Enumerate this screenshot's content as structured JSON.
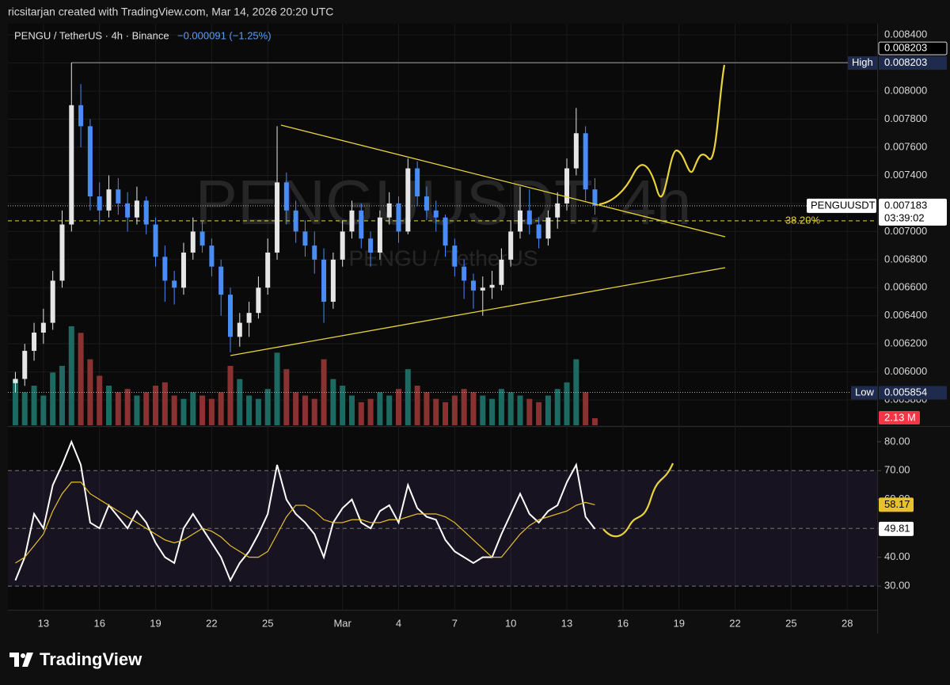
{
  "header": {
    "attribution": "ricsitarjan created with TradingView.com, Mar 14, 2026 20:20 UTC",
    "symbol": "PENGU / TetherUS · 4h · Binance",
    "change": "−0.000091 (−1.25%)",
    "watermark": "PENGUUSDT, 4h",
    "watermark_sub": "PENGU / TetherUS"
  },
  "footer": {
    "brand": "TradingView"
  },
  "chart_data": [
    {
      "type": "candlestick",
      "xlim": [
        -1.9,
        44.6
      ],
      "xticks": [
        {
          "value": 0,
          "label": "13"
        },
        {
          "value": 3,
          "label": "16"
        },
        {
          "value": 6,
          "label": "19"
        },
        {
          "value": 9,
          "label": "22"
        },
        {
          "value": 12,
          "label": "25"
        },
        {
          "value": 16,
          "label": "Mar"
        },
        {
          "value": 19,
          "label": "4"
        },
        {
          "value": 22,
          "label": "7"
        },
        {
          "value": 25,
          "label": "10"
        },
        {
          "value": 28,
          "label": "13"
        },
        {
          "value": 31,
          "label": "16"
        },
        {
          "value": 34,
          "label": "19"
        },
        {
          "value": 37,
          "label": "22"
        },
        {
          "value": 40,
          "label": "25"
        },
        {
          "value": 43,
          "label": "28"
        }
      ],
      "ylim": [
        0.00562,
        0.00848
      ],
      "yticks": [
        {
          "value": 0.0058,
          "label": "0.005800"
        },
        {
          "value": 0.006,
          "label": "0.006000"
        },
        {
          "value": 0.0062,
          "label": "0.006200"
        },
        {
          "value": 0.0064,
          "label": "0.006400"
        },
        {
          "value": 0.0066,
          "label": "0.006600"
        },
        {
          "value": 0.0068,
          "label": "0.006800"
        },
        {
          "value": 0.007,
          "label": "0.007000"
        },
        {
          "value": 0.0072,
          "label": "0.007200"
        },
        {
          "value": 0.0074,
          "label": "0.007400"
        },
        {
          "value": 0.0076,
          "label": "0.007600"
        },
        {
          "value": 0.0078,
          "label": "0.007800"
        },
        {
          "value": 0.008,
          "label": "0.008000"
        },
        {
          "value": 0.0082,
          "label": "0.008200"
        },
        {
          "value": 0.0084,
          "label": "0.008400"
        }
      ],
      "x": [
        -1.5,
        -1,
        -0.5,
        0,
        0.5,
        1,
        1.5,
        2,
        2.5,
        3,
        3.5,
        4,
        4.5,
        5,
        5.5,
        6,
        6.5,
        7,
        7.5,
        8,
        8.5,
        9,
        9.5,
        10,
        10.5,
        11,
        11.5,
        12,
        12.5,
        13,
        13.5,
        14,
        14.5,
        15,
        15.5,
        16,
        16.5,
        17,
        17.5,
        18,
        18.5,
        19,
        19.5,
        20,
        20.5,
        21,
        21.5,
        22,
        22.5,
        23,
        23.5,
        24,
        24.5,
        25,
        25.5,
        26,
        26.5,
        27,
        27.5,
        28,
        28.5,
        29,
        29.5
      ],
      "candles": [
        [
          0.00592,
          0.006,
          0.005854,
          0.00595
        ],
        [
          0.00595,
          0.0062,
          0.0059,
          0.00615
        ],
        [
          0.00615,
          0.00635,
          0.00608,
          0.00628
        ],
        [
          0.00628,
          0.00645,
          0.0062,
          0.00635
        ],
        [
          0.00635,
          0.00672,
          0.0063,
          0.00665
        ],
        [
          0.00665,
          0.00715,
          0.0066,
          0.00705
        ],
        [
          0.00705,
          0.008203,
          0.007,
          0.0079
        ],
        [
          0.0079,
          0.00805,
          0.0076,
          0.00775
        ],
        [
          0.00775,
          0.0078,
          0.00715,
          0.00725
        ],
        [
          0.00725,
          0.00735,
          0.00705,
          0.00715
        ],
        [
          0.00715,
          0.0074,
          0.0071,
          0.0073
        ],
        [
          0.0073,
          0.00738,
          0.00712,
          0.0072
        ],
        [
          0.0072,
          0.00728,
          0.007,
          0.0071
        ],
        [
          0.0071,
          0.00732,
          0.00705,
          0.00722
        ],
        [
          0.00722,
          0.00725,
          0.00698,
          0.00705
        ],
        [
          0.00705,
          0.0071,
          0.00675,
          0.00682
        ],
        [
          0.00682,
          0.0069,
          0.0065,
          0.00665
        ],
        [
          0.00665,
          0.00672,
          0.00648,
          0.0066
        ],
        [
          0.0066,
          0.00692,
          0.00655,
          0.00685
        ],
        [
          0.00685,
          0.0071,
          0.0068,
          0.007
        ],
        [
          0.007,
          0.00708,
          0.00685,
          0.0069
        ],
        [
          0.0069,
          0.00695,
          0.00668,
          0.00675
        ],
        [
          0.00675,
          0.0068,
          0.0064,
          0.00655
        ],
        [
          0.00655,
          0.0066,
          0.00614,
          0.00625
        ],
        [
          0.00625,
          0.00642,
          0.00618,
          0.00635
        ],
        [
          0.00635,
          0.0065,
          0.00625,
          0.00642
        ],
        [
          0.00642,
          0.00668,
          0.00638,
          0.0066
        ],
        [
          0.0066,
          0.00695,
          0.00655,
          0.00685
        ],
        [
          0.00685,
          0.00775,
          0.0068,
          0.00735
        ],
        [
          0.00735,
          0.00742,
          0.00705,
          0.00715
        ],
        [
          0.00715,
          0.00722,
          0.00692,
          0.007
        ],
        [
          0.007,
          0.00708,
          0.00682,
          0.0069
        ],
        [
          0.0069,
          0.007,
          0.0067,
          0.0068
        ],
        [
          0.0068,
          0.00688,
          0.00635,
          0.0065
        ],
        [
          0.0065,
          0.00685,
          0.00645,
          0.0068
        ],
        [
          0.0068,
          0.00708,
          0.00675,
          0.007
        ],
        [
          0.007,
          0.00722,
          0.00695,
          0.00715
        ],
        [
          0.00715,
          0.0072,
          0.00688,
          0.00695
        ],
        [
          0.00695,
          0.007,
          0.00675,
          0.00685
        ],
        [
          0.00685,
          0.00715,
          0.0068,
          0.0071
        ],
        [
          0.0071,
          0.00728,
          0.00705,
          0.0072
        ],
        [
          0.0072,
          0.00725,
          0.00692,
          0.007
        ],
        [
          0.007,
          0.00752,
          0.00698,
          0.00745
        ],
        [
          0.00745,
          0.0075,
          0.00718,
          0.00725
        ],
        [
          0.00725,
          0.00732,
          0.00708,
          0.00715
        ],
        [
          0.00715,
          0.00722,
          0.007,
          0.0071
        ],
        [
          0.0071,
          0.00712,
          0.00682,
          0.0069
        ],
        [
          0.0069,
          0.00695,
          0.00668,
          0.00675
        ],
        [
          0.00675,
          0.0068,
          0.00652,
          0.00665
        ],
        [
          0.00665,
          0.0067,
          0.00645,
          0.00658
        ],
        [
          0.00658,
          0.00668,
          0.0064,
          0.0066
        ],
        [
          0.0066,
          0.00672,
          0.00652,
          0.00662
        ],
        [
          0.00662,
          0.00688,
          0.00658,
          0.0068
        ],
        [
          0.0068,
          0.00708,
          0.00675,
          0.007
        ],
        [
          0.007,
          0.00732,
          0.00695,
          0.00715
        ],
        [
          0.00715,
          0.0073,
          0.00698,
          0.00705
        ],
        [
          0.00705,
          0.0071,
          0.00688,
          0.00695
        ],
        [
          0.00695,
          0.00715,
          0.0069,
          0.0071
        ],
        [
          0.0071,
          0.00728,
          0.00702,
          0.0072
        ],
        [
          0.0072,
          0.00752,
          0.00715,
          0.00745
        ],
        [
          0.00745,
          0.00788,
          0.0074,
          0.0077
        ],
        [
          0.0077,
          0.00775,
          0.00722,
          0.0073
        ],
        [
          0.0073,
          0.00738,
          0.00712,
          0.007183
        ]
      ],
      "volumes": [
        14,
        10,
        12,
        9,
        16,
        18,
        30,
        28,
        20,
        15,
        12,
        10,
        11,
        9,
        10,
        12,
        13,
        9,
        8,
        10,
        9,
        8,
        10,
        18,
        14,
        9,
        8,
        11,
        22,
        17,
        10,
        9,
        8,
        20,
        14,
        12,
        9,
        7,
        8,
        10,
        9,
        11,
        17,
        12,
        10,
        8,
        7,
        9,
        11,
        10,
        9,
        8,
        11,
        10,
        9,
        8,
        7,
        9,
        11,
        13,
        20,
        10,
        2.13
      ],
      "volume_last_label": "2.13 M",
      "up_color": "#e6e6e6",
      "down_color": "#4a8cf5",
      "volume_up_color": "#1c6a62",
      "volume_down_color": "#8a3232",
      "high_label": "High",
      "low_label": "Low",
      "symbol_label": "PENGUUSDT",
      "countdown": "03:39:02",
      "fib_level": {
        "value": 0.007076,
        "label": "38.20%"
      }
    },
    {
      "type": "line",
      "ylim": [
        21.8,
        84.9
      ],
      "yticks": [
        {
          "value": 30,
          "label": "30.00"
        },
        {
          "value": 40,
          "label": "40.00"
        },
        {
          "value": 50,
          "label": "50.00"
        },
        {
          "value": 60,
          "label": "60.00"
        },
        {
          "value": 70,
          "label": "70.00"
        },
        {
          "value": 80,
          "label": "80.00"
        }
      ],
      "band": [
        30,
        70
      ],
      "midline": 50,
      "series": [
        {
          "color": "#ffffff",
          "values": [
            32,
            40,
            55,
            50,
            65,
            72,
            80,
            72,
            52,
            50,
            58,
            54,
            50,
            56,
            52,
            45,
            40,
            38,
            50,
            55,
            50,
            45,
            40,
            32,
            38,
            42,
            48,
            55,
            72,
            60,
            55,
            52,
            48,
            40,
            52,
            57,
            60,
            52,
            50,
            56,
            58,
            52,
            65,
            57,
            54,
            53,
            46,
            42,
            40,
            38,
            40,
            40,
            48,
            55,
            62,
            55,
            52,
            56,
            58,
            66,
            72,
            54,
            49.81
          ]
        },
        {
          "color": "#e8c22c",
          "values": [
            38,
            40,
            44,
            48,
            56,
            62,
            66,
            66,
            62,
            60,
            58,
            56,
            54,
            52,
            50,
            48,
            46,
            45,
            46,
            48,
            50,
            49,
            47,
            44,
            42,
            40,
            40,
            42,
            48,
            54,
            58,
            58,
            56,
            53,
            52,
            52,
            53,
            53,
            52,
            52,
            53,
            53,
            54,
            55,
            55,
            55,
            54,
            52,
            49,
            46,
            43,
            40,
            40,
            44,
            48,
            51,
            53,
            54,
            55,
            56,
            58,
            59,
            58.17
          ]
        }
      ]
    }
  ]
}
